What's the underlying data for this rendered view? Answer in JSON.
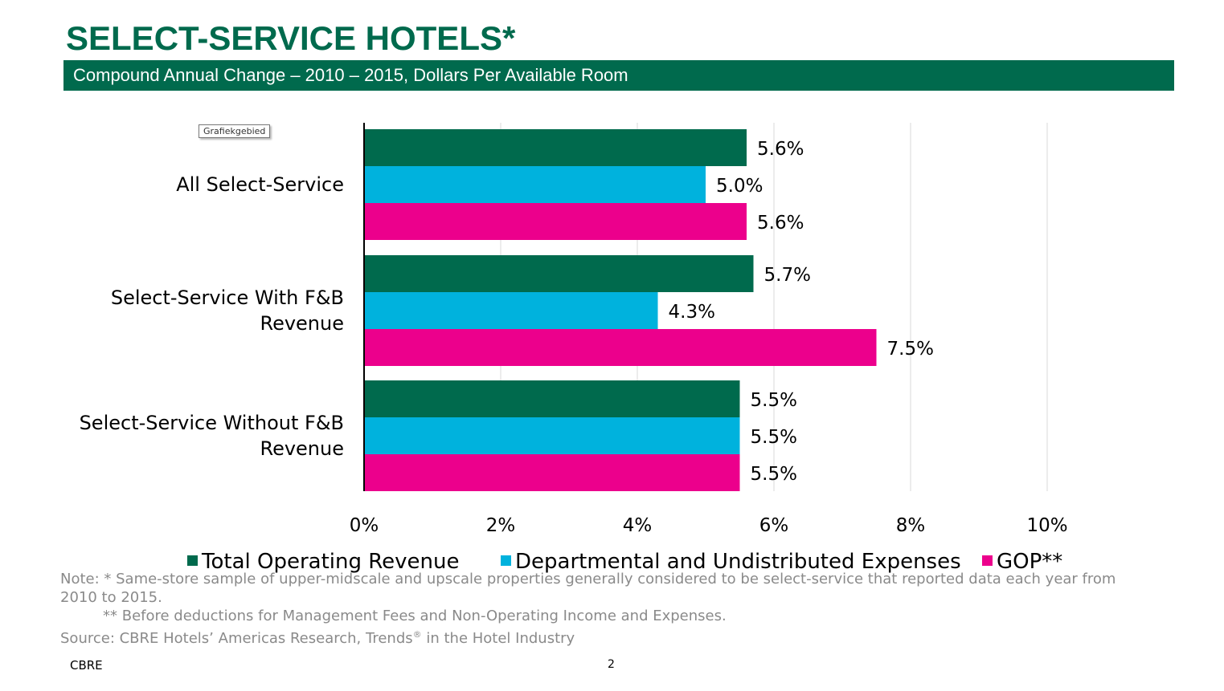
{
  "title": "SELECT-SERVICE HOTELS*",
  "subtitle": "Compound Annual Change – 2010 – 2015,  Dollars Per Available Room",
  "tooltip": "Grafiekgebied",
  "chart_data": {
    "type": "bar",
    "orientation": "horizontal",
    "categories": [
      "All Select-Service",
      "Select-Service With F&B Revenue",
      "Select-Service Without F&B Revenue"
    ],
    "category_lines": [
      [
        "All Select-Service"
      ],
      [
        "Select-Service With F&B",
        "Revenue"
      ],
      [
        "Select-Service Without F&B",
        "Revenue"
      ]
    ],
    "series": [
      {
        "name": "Total Operating Revenue",
        "color": "#006A4D",
        "values": [
          5.6,
          5.7,
          5.5
        ],
        "labels": [
          "5.6%",
          "5.7%",
          "5.5%"
        ]
      },
      {
        "name": "Departmental and Undistributed Expenses",
        "color": "#00B2DD",
        "values": [
          5.0,
          4.3,
          5.5
        ],
        "labels": [
          "5.0%",
          "4.3%",
          "5.5%"
        ]
      },
      {
        "name": "GOP**",
        "color": "#EC008C",
        "values": [
          5.6,
          7.5,
          5.5
        ],
        "labels": [
          "5.6%",
          "7.5%",
          "5.5%"
        ]
      }
    ],
    "xticks": [
      0,
      2,
      4,
      6,
      8,
      10
    ],
    "xtick_labels": [
      "0%",
      "2%",
      "4%",
      "6%",
      "8%",
      "10%"
    ],
    "xlim": [
      0,
      12
    ],
    "grid": true,
    "legend": "bottom"
  },
  "notes": {
    "line1": "Note: * Same-store sample of upper-midscale and upscale properties generally considered to be select-service that reported data each year from",
    "line2": "2010 to 2015.",
    "line3": "** Before deductions for Management Fees and Non-Operating Income and Expenses.",
    "line4_pre": "Source: CBRE Hotels’ Americas Research, Trends",
    "line4_sup": "®",
    "line4_post": " in the Hotel Industry"
  },
  "footer": {
    "brand": "CBRE",
    "page": "2"
  }
}
